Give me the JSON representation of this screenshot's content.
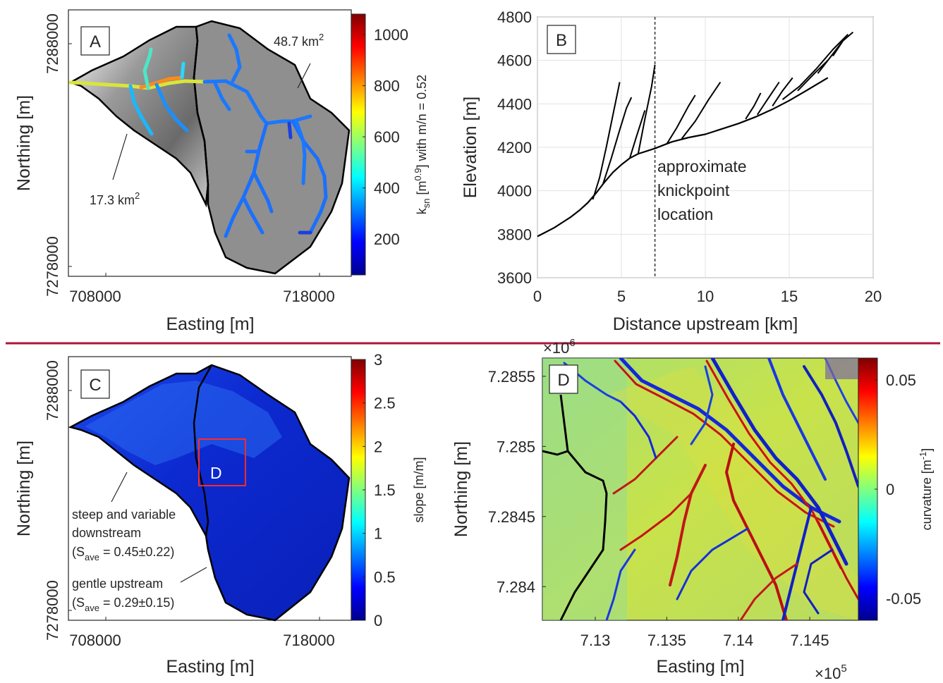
{
  "colors": {
    "divider": "#b0143a",
    "stream_line": "#000000",
    "basin_boundary": "#000000",
    "inset_box": "#ff2a2a"
  },
  "chart_data": [
    {
      "panel": "A",
      "type": "heatmap",
      "xlabel": "Easting [m]",
      "ylabel": "Northing [m]",
      "x_ticks": [
        "708000",
        "718000"
      ],
      "y_ticks": [
        "7288000",
        "7278000"
      ],
      "colorbar": {
        "label": "k_sn [m^0.9] with m/n = 0.52",
        "label_parts": {
          "pre": "k",
          "sub": "sn",
          "mid": " [m",
          "sup": "0.9",
          "post": "] with m/n = 0.52"
        },
        "ticks": [
          "200",
          "400",
          "600",
          "800",
          "1000"
        ],
        "tick_values": [
          200,
          400,
          600,
          800,
          1000
        ],
        "range": [
          60,
          1080
        ],
        "colormap": "jet"
      },
      "annotations": [
        {
          "text": "48.7 km",
          "sup": "2"
        },
        {
          "text": "17.3 km",
          "sup": "2"
        }
      ]
    },
    {
      "panel": "B",
      "type": "line",
      "xlabel": "Distance upstream [km]",
      "ylabel": "Elevation [m]",
      "xlim": [
        0,
        20
      ],
      "ylim": [
        3600,
        4800
      ],
      "x_ticks": [
        0,
        5,
        10,
        15,
        20
      ],
      "y_ticks": [
        3600,
        3800,
        4000,
        4200,
        4400,
        4600,
        4800
      ],
      "grid": true,
      "knickpoint_x": 7,
      "annotation_lines": [
        "approximate",
        "knickpoint",
        "location"
      ],
      "series": [
        {
          "x": [
            0,
            0.5,
            1,
            1.5,
            2,
            2.5,
            3,
            3.5,
            4,
            4.5,
            5,
            5.5,
            6,
            7,
            8,
            9,
            10,
            11,
            12,
            13,
            14,
            15,
            16,
            17.3
          ],
          "y": [
            3790,
            3810,
            3830,
            3855,
            3880,
            3910,
            3945,
            3990,
            4040,
            4085,
            4120,
            4150,
            4170,
            4195,
            4225,
            4245,
            4260,
            4285,
            4310,
            4340,
            4375,
            4415,
            4460,
            4520
          ]
        },
        {
          "x": [
            3.3,
            3.7,
            4.1,
            4.5,
            4.9
          ],
          "y": [
            3960,
            4060,
            4200,
            4350,
            4500
          ]
        },
        {
          "x": [
            3.9,
            4.4,
            4.9,
            5.3,
            5.6
          ],
          "y": [
            4030,
            4150,
            4280,
            4380,
            4430
          ]
        },
        {
          "x": [
            5.5,
            5.9,
            6.4
          ],
          "y": [
            4150,
            4250,
            4370
          ]
        },
        {
          "x": [
            6.0,
            6.4,
            6.8,
            7.0
          ],
          "y": [
            4170,
            4330,
            4480,
            4580
          ]
        },
        {
          "x": [
            7.7,
            8.3,
            9.0,
            9.4
          ],
          "y": [
            4215,
            4290,
            4390,
            4440
          ]
        },
        {
          "x": [
            8.6,
            9.4,
            10.2,
            10.9
          ],
          "y": [
            4240,
            4320,
            4420,
            4500
          ]
        },
        {
          "x": [
            12.4,
            12.9,
            13.3
          ],
          "y": [
            4330,
            4390,
            4450
          ]
        },
        {
          "x": [
            13.1,
            13.7,
            14.4
          ],
          "y": [
            4350,
            4420,
            4500
          ]
        },
        {
          "x": [
            14.0,
            14.6,
            15.2
          ],
          "y": [
            4390,
            4460,
            4520
          ]
        },
        {
          "x": [
            14.6,
            15.6,
            16.6,
            17.6,
            18.5
          ],
          "y": [
            4420,
            4480,
            4560,
            4650,
            4720
          ]
        },
        {
          "x": [
            15.5,
            16.5,
            17.3
          ],
          "y": [
            4460,
            4540,
            4600
          ]
        },
        {
          "x": [
            16.7,
            17.4,
            18.1
          ],
          "y": [
            4540,
            4610,
            4680
          ]
        },
        {
          "x": [
            17.6,
            18.2,
            18.8
          ],
          "y": [
            4620,
            4690,
            4730
          ]
        }
      ]
    },
    {
      "panel": "C",
      "type": "heatmap",
      "xlabel": "Easting [m]",
      "ylabel": "Northing [m]",
      "x_ticks": [
        "708000",
        "718000"
      ],
      "y_ticks": [
        "7288000",
        "7278000"
      ],
      "colorbar": {
        "label": "slope [m/m]",
        "ticks": [
          "0",
          "0.5",
          "1",
          "1.5",
          "2",
          "2.5",
          "3"
        ],
        "tick_values": [
          0,
          0.5,
          1,
          1.5,
          2,
          2.5,
          3
        ],
        "range": [
          0,
          3
        ],
        "colormap": "jet"
      },
      "inset_label": "D",
      "annotations": [
        {
          "lines": [
            "steep and variable",
            "downstream"
          ],
          "stat": {
            "pre": "(S",
            "sub": "ave",
            "post": " = 0.45±0.22)"
          }
        },
        {
          "lines": [
            "gentle upstream"
          ],
          "stat": {
            "pre": "(S",
            "sub": "ave",
            "post": " = 0.29±0.15)"
          }
        }
      ]
    },
    {
      "panel": "D",
      "type": "heatmap",
      "xlabel": "Easting [m]",
      "ylabel": "Northing [m]",
      "x_ticks": [
        "7.13",
        "7.135",
        "7.14",
        "7.145"
      ],
      "x_tick_values": [
        7.13,
        7.135,
        7.14,
        7.145
      ],
      "x_multiplier": {
        "base": "×10",
        "exp": "5"
      },
      "y_ticks": [
        "7.2855",
        "7.285",
        "7.2845",
        "7.284"
      ],
      "y_tick_values": [
        7.2855,
        7.285,
        7.2845,
        7.284
      ],
      "y_multiplier": {
        "base": "×10",
        "exp": "6"
      },
      "colorbar": {
        "label": "curvature [m^-1]",
        "label_parts": {
          "pre": "curvature [m",
          "sup": "-1",
          "post": "]"
        },
        "ticks": [
          "0.05",
          "0",
          "-0.05"
        ],
        "tick_values": [
          0.05,
          0,
          -0.05
        ],
        "range": [
          -0.06,
          0.06
        ],
        "colormap": "jet"
      }
    }
  ]
}
